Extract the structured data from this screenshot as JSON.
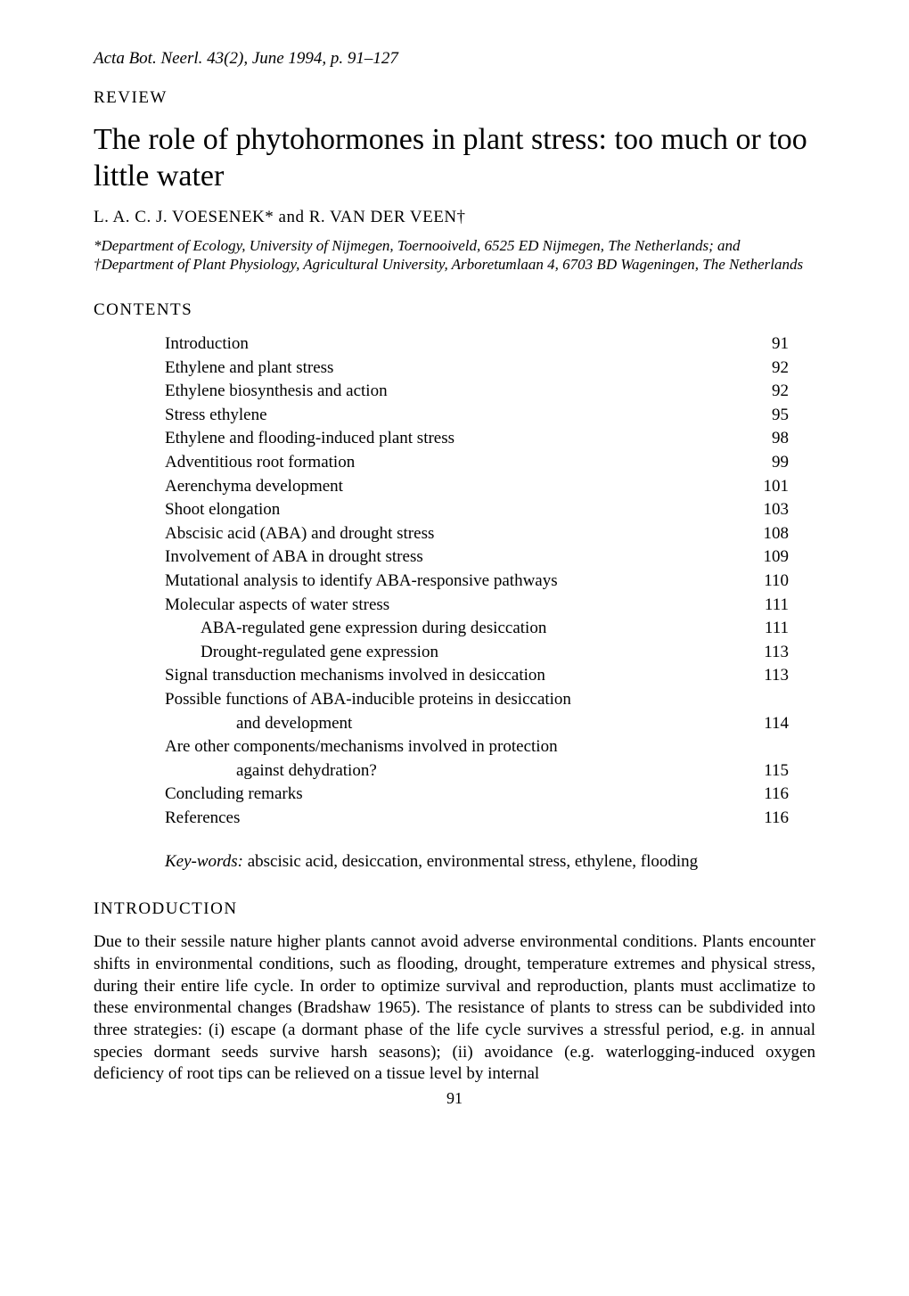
{
  "journal_header": "Acta Bot. Neerl. 43(2), June 1994, p. 91–127",
  "article_type": "REVIEW",
  "title": "The role of phytohormones in plant stress: too much or too little water",
  "authors": "L. A. C. J. VOESENEK* and R. VAN DER VEEN†",
  "affiliations": "*Department of Ecology, University of Nijmegen, Toernooiveld, 6525 ED Nijmegen, The Netherlands; and †Department of Plant Physiology, Agricultural University, Arboretumlaan 4, 6703 BD Wageningen, The Netherlands",
  "contents_heading": "CONTENTS",
  "contents": [
    {
      "label": "Introduction",
      "page": "91",
      "indent": 0
    },
    {
      "label": "Ethylene and plant stress",
      "page": "92",
      "indent": 0
    },
    {
      "label": "Ethylene biosynthesis and action",
      "page": "92",
      "indent": 0
    },
    {
      "label": "Stress ethylene",
      "page": "95",
      "indent": 0
    },
    {
      "label": "Ethylene and flooding-induced plant stress",
      "page": "98",
      "indent": 0
    },
    {
      "label": "Adventitious root formation",
      "page": "99",
      "indent": 0
    },
    {
      "label": "Aerenchyma development",
      "page": "101",
      "indent": 0
    },
    {
      "label": "Shoot elongation",
      "page": "103",
      "indent": 0
    },
    {
      "label": "Abscisic acid (ABA) and drought stress",
      "page": "108",
      "indent": 0
    },
    {
      "label": "Involvement of ABA in drought stress",
      "page": "109",
      "indent": 0
    },
    {
      "label": "Mutational analysis to identify ABA-responsive pathways",
      "page": "110",
      "indent": 0
    },
    {
      "label": "Molecular aspects of water stress",
      "page": "111",
      "indent": 0
    },
    {
      "label": "ABA-regulated gene expression during desiccation",
      "page": "111",
      "indent": 1
    },
    {
      "label": "Drought-regulated gene expression",
      "page": "113",
      "indent": 1
    },
    {
      "label": "Signal transduction mechanisms involved in desiccation",
      "page": "113",
      "indent": 0
    },
    {
      "label": "Possible functions of ABA-inducible proteins in desiccation",
      "page": "",
      "indent": 0
    },
    {
      "label": "and development",
      "page": "114",
      "indent": 2
    },
    {
      "label": "Are other components/mechanisms involved in protection",
      "page": "",
      "indent": 0
    },
    {
      "label": "against dehydration?",
      "page": "115",
      "indent": 2
    },
    {
      "label": "Concluding remarks",
      "page": "116",
      "indent": 0
    },
    {
      "label": "References",
      "page": "116",
      "indent": 0
    }
  ],
  "keywords_label": "Key-words:",
  "keywords_text": " abscisic acid, desiccation, environmental stress, ethylene, flooding",
  "intro_heading": "INTRODUCTION",
  "intro_body": "Due to their sessile nature higher plants cannot avoid adverse environmental conditions. Plants encounter shifts in environmental conditions, such as flooding, drought, temperature extremes and physical stress, during their entire life cycle. In order to optimize survival and reproduction, plants must acclimatize to these environmental changes (Bradshaw 1965). The resistance of plants to stress can be subdivided into three strategies: (i) escape (a dormant phase of the life cycle survives a stressful period, e.g. in annual species dormant seeds survive harsh seasons); (ii) avoidance (e.g. waterlogging-induced oxygen deficiency of root tips can be relieved on a tissue level by internal",
  "page_number": "91"
}
